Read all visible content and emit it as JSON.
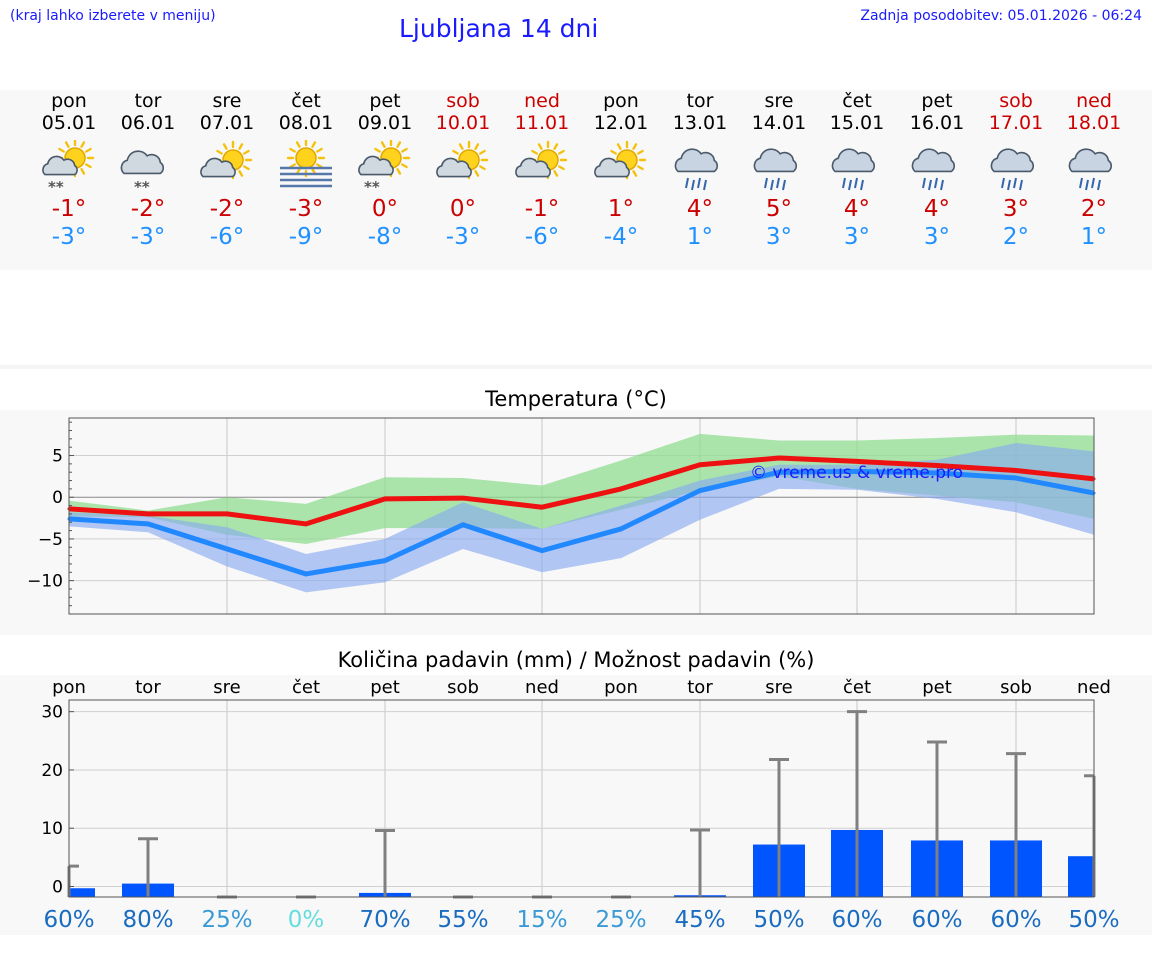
{
  "header": {
    "hint": "(kraj lahko izberete v meniju)",
    "title": "Ljubljana 14 dni",
    "updated": "Zadnja posodobitev: 05.01.2026 - 06:24"
  },
  "days": [
    {
      "name": "pon",
      "date": "05.01",
      "weekend": false,
      "icon": "sun-cloud-snow-icon",
      "tmax": "-1°",
      "tmin": "-3°"
    },
    {
      "name": "tor",
      "date": "06.01",
      "weekend": false,
      "icon": "cloud-snow-icon",
      "tmax": "-2°",
      "tmin": "-3°"
    },
    {
      "name": "sre",
      "date": "07.01",
      "weekend": false,
      "icon": "sun-cloud-icon",
      "tmax": "-2°",
      "tmin": "-6°"
    },
    {
      "name": "čet",
      "date": "08.01",
      "weekend": false,
      "icon": "sun-fog-icon",
      "tmax": "-3°",
      "tmin": "-9°"
    },
    {
      "name": "pet",
      "date": "09.01",
      "weekend": false,
      "icon": "sun-cloud-snow-icon",
      "tmax": "0°",
      "tmin": "-8°"
    },
    {
      "name": "sob",
      "date": "10.01",
      "weekend": true,
      "icon": "sun-cloud-icon",
      "tmax": "0°",
      "tmin": "-3°"
    },
    {
      "name": "ned",
      "date": "11.01",
      "weekend": true,
      "icon": "sun-cloud-icon",
      "tmax": "-1°",
      "tmin": "-6°"
    },
    {
      "name": "pon",
      "date": "12.01",
      "weekend": false,
      "icon": "sun-cloud-icon",
      "tmax": "1°",
      "tmin": "-4°"
    },
    {
      "name": "tor",
      "date": "13.01",
      "weekend": false,
      "icon": "cloud-rain-icon",
      "tmax": "4°",
      "tmin": "1°"
    },
    {
      "name": "sre",
      "date": "14.01",
      "weekend": false,
      "icon": "cloud-rain-icon",
      "tmax": "5°",
      "tmin": "3°"
    },
    {
      "name": "čet",
      "date": "15.01",
      "weekend": false,
      "icon": "cloud-rain-icon",
      "tmax": "4°",
      "tmin": "3°"
    },
    {
      "name": "pet",
      "date": "16.01",
      "weekend": false,
      "icon": "cloud-rain-icon",
      "tmax": "4°",
      "tmin": "3°"
    },
    {
      "name": "sob",
      "date": "17.01",
      "weekend": true,
      "icon": "cloud-rain-icon",
      "tmax": "3°",
      "tmin": "2°"
    },
    {
      "name": "ned",
      "date": "18.01",
      "weekend": true,
      "icon": "cloud-rain-icon",
      "tmax": "2°",
      "tmin": "1°"
    }
  ],
  "colors": {
    "red": "#cc0000",
    "blue_text": "#1e90ff",
    "title_blue": "#1a1aff",
    "max_line": "#ee1111",
    "min_line": "#2288ff",
    "max_band": "#90dd90",
    "min_band": "#8aaaf0",
    "overlap_band": "#66b0a0",
    "bar": "#0055ff",
    "whisker": "#808080"
  },
  "chart_data": [
    {
      "type": "line",
      "title": "Temperatura (°C)",
      "xlabel": "",
      "ylabel": "",
      "ylim": [
        -14,
        9.5
      ],
      "yticks": [
        5,
        0,
        -5,
        -10
      ],
      "ytick_labels": [
        "5",
        "0",
        "−5",
        "−10"
      ],
      "categories": [
        "pon",
        "tor",
        "sre",
        "čet",
        "pet",
        "sob",
        "ned",
        "pon",
        "tor",
        "sre",
        "čet",
        "pet",
        "sob",
        "ned"
      ],
      "watermark": "© vreme.us & vreme.pro",
      "series": [
        {
          "name": "max",
          "values": [
            -1.4,
            -2.0,
            -2.0,
            -3.2,
            -0.2,
            -0.1,
            -1.2,
            1.0,
            3.9,
            4.7,
            4.3,
            3.8,
            3.2,
            2.2
          ]
        },
        {
          "name": "min",
          "values": [
            -2.6,
            -3.2,
            -6.2,
            -9.2,
            -7.6,
            -3.3,
            -6.4,
            -3.8,
            0.8,
            3.0,
            3.1,
            2.9,
            2.3,
            0.5
          ]
        },
        {
          "name": "max_band_low",
          "values": [
            -2.3,
            -2.4,
            -4.5,
            -5.6,
            -3.7,
            -3.7,
            -3.8,
            -1.5,
            0.8,
            2.5,
            1.0,
            0.2,
            -0.6,
            -2.6
          ]
        },
        {
          "name": "max_band_high",
          "values": [
            -0.4,
            -1.6,
            0.0,
            -0.8,
            2.4,
            2.3,
            1.4,
            4.4,
            7.6,
            6.8,
            6.8,
            7.1,
            7.5,
            7.4
          ]
        },
        {
          "name": "min_band_low",
          "values": [
            -3.5,
            -4.2,
            -8.3,
            -11.4,
            -10.2,
            -6.2,
            -9.0,
            -7.3,
            -2.7,
            1.0,
            0.9,
            -0.2,
            -1.8,
            -4.5
          ]
        },
        {
          "name": "min_band_high",
          "values": [
            -1.8,
            -2.2,
            -3.6,
            -6.8,
            -5.0,
            -0.6,
            -3.8,
            -1.0,
            2.0,
            3.9,
            3.9,
            4.5,
            6.5,
            5.5
          ]
        }
      ]
    },
    {
      "type": "bar",
      "title": "Količina padavin (mm) / Možnost padavin (%)",
      "ylim": [
        -1.8,
        32
      ],
      "yticks": [
        30,
        20,
        10,
        0
      ],
      "ytick_labels": [
        "30",
        "20",
        "10",
        "0"
      ],
      "categories": [
        "pon",
        "tor",
        "sre",
        "čet",
        "pet",
        "sob",
        "ned",
        "pon",
        "tor",
        "sre",
        "čet",
        "pet",
        "sob",
        "ned"
      ],
      "values": [
        -0.3,
        0.5,
        -1.8,
        -1.8,
        -1.1,
        -1.8,
        -1.8,
        -1.8,
        -1.5,
        7.2,
        9.7,
        7.9,
        7.9,
        5.2
      ],
      "whisker_top": [
        3.5,
        8.2,
        -1.8,
        -1.8,
        9.6,
        -1.8,
        -1.8,
        -1.8,
        9.7,
        21.8,
        30.0,
        24.8,
        22.8,
        19.0
      ],
      "probability": [
        "60%",
        "80%",
        "25%",
        "0%",
        "70%",
        "55%",
        "15%",
        "25%",
        "45%",
        "50%",
        "60%",
        "60%",
        "60%",
        "50%"
      ],
      "probability_colors": [
        "#1a6cc0",
        "#1a6cc0",
        "#3a9ad6",
        "#66dddd",
        "#1a6cc0",
        "#1a6cc0",
        "#3a9ad6",
        "#3a9ad6",
        "#1a6cc0",
        "#1a6cc0",
        "#1a6cc0",
        "#1a6cc0",
        "#1a6cc0",
        "#1a6cc0"
      ]
    }
  ]
}
